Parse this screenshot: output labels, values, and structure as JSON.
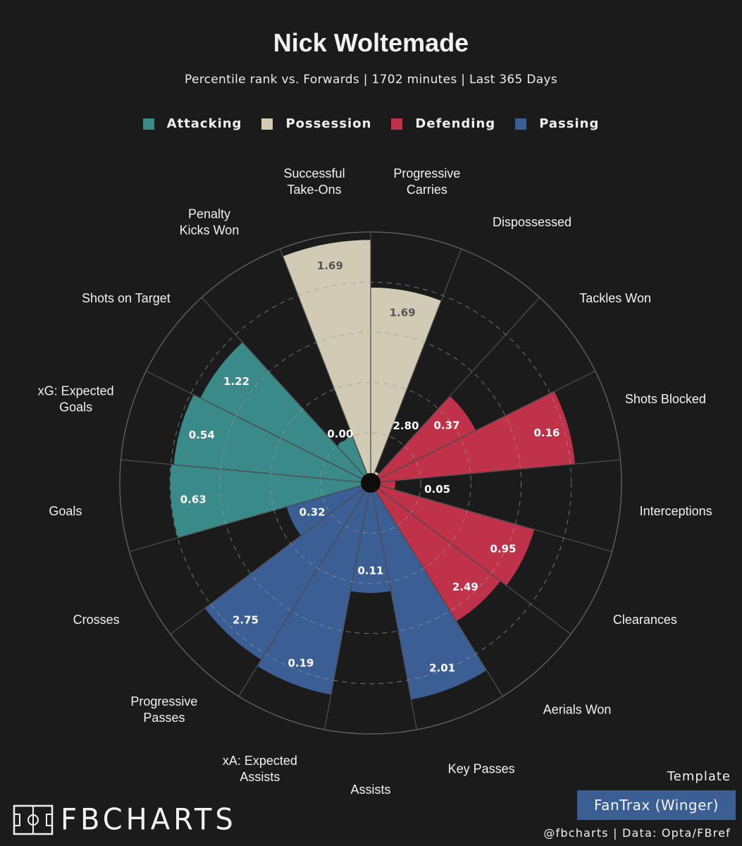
{
  "title": "Nick Woltemade",
  "subtitle": "Percentile rank vs. Forwards | 1702 minutes | Last 365 Days",
  "legend": [
    {
      "label": "Attacking",
      "color": "#3a8a89"
    },
    {
      "label": "Possession",
      "color": "#d1cab5"
    },
    {
      "label": "Defending",
      "color": "#bf3249"
    },
    {
      "label": "Passing",
      "color": "#3b5f95"
    }
  ],
  "template_label": "Template",
  "template_name": "FanTrax (Winger)",
  "credit": "@fbcharts | Data: Opta/FBref",
  "logo_text": "FBCHARTS",
  "chart_data": {
    "type": "polar-bar",
    "rmax": 100,
    "rings": [
      20,
      40,
      60,
      80,
      100
    ],
    "categories": [
      {
        "label": "Progressive Carries",
        "group": "Possession",
        "percentile": 78,
        "value": "1.69"
      },
      {
        "label": "Dispossessed",
        "group": "Possession",
        "percentile": 5,
        "value": "2.80"
      },
      {
        "label": "Tackles Won",
        "group": "Defending",
        "percentile": 47,
        "value": "0.37"
      },
      {
        "label": "Shots Blocked",
        "group": "Defending",
        "percentile": 82,
        "value": "0.16"
      },
      {
        "label": "Interceptions",
        "group": "Defending",
        "percentile": 10,
        "value": "0.05"
      },
      {
        "label": "Clearances",
        "group": "Defending",
        "percentile": 68,
        "value": "0.95"
      },
      {
        "label": "Aerials Won",
        "group": "Defending",
        "percentile": 65,
        "value": "2.49"
      },
      {
        "label": "Key Passes",
        "group": "Passing",
        "percentile": 88,
        "value": "2.01"
      },
      {
        "label": "Assists",
        "group": "Passing",
        "percentile": 44,
        "value": "0.11"
      },
      {
        "label": "xA: Expected Assists",
        "group": "Passing",
        "percentile": 86,
        "value": "0.19"
      },
      {
        "label": "Progressive Passes",
        "group": "Passing",
        "percentile": 83,
        "value": "2.75"
      },
      {
        "label": "Crosses",
        "group": "Passing",
        "percentile": 35,
        "value": "0.32"
      },
      {
        "label": "Goals",
        "group": "Attacking",
        "percentile": 80,
        "value": "0.63"
      },
      {
        "label": "xG: Expected Goals",
        "group": "Attacking",
        "percentile": 79,
        "value": "0.54"
      },
      {
        "label": "Shots on Target",
        "group": "Attacking",
        "percentile": 76,
        "value": "1.22"
      },
      {
        "label": "Penalty Kicks Won",
        "group": "Attacking",
        "percentile": 20,
        "value": "0.00"
      },
      {
        "label": "Successful Take-Ons",
        "group": "Possession",
        "percentile": 97,
        "value": "1.69"
      }
    ]
  }
}
